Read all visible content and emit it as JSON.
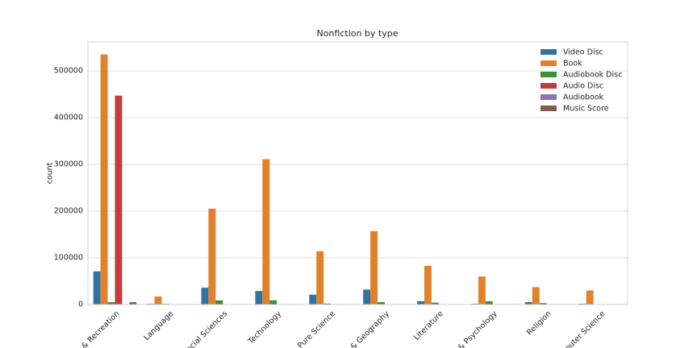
{
  "chart_data": {
    "type": "bar",
    "title": "Nonfiction by type",
    "y_label": "count",
    "categories": [
      "ts & Recreation",
      "Language",
      "Social Sciences",
      "Technology",
      "Pure Science",
      "y & Geography",
      "Literature",
      "y & Psychology",
      "Religion",
      "mputer Science"
    ],
    "series": [
      {
        "name": "Video Disc",
        "color": "#3274a1",
        "values": [
          71000,
          1500,
          36000,
          29000,
          21000,
          32000,
          7000,
          1500,
          5000,
          1500
        ]
      },
      {
        "name": "Book",
        "color": "#e1812c",
        "values": [
          535000,
          17000,
          205000,
          311000,
          114000,
          157000,
          83000,
          60000,
          37000,
          30000
        ]
      },
      {
        "name": "Audiobook Disc",
        "color": "#3a923a",
        "values": [
          5000,
          1500,
          9000,
          9000,
          2000,
          5000,
          4000,
          7000,
          3000,
          0
        ]
      },
      {
        "name": "Audio Disc",
        "color": "#c03d3e",
        "values": [
          447000,
          0,
          0,
          0,
          0,
          0,
          0,
          0,
          0,
          0
        ]
      },
      {
        "name": "Audiobook",
        "color": "#9372b2",
        "values": [
          0,
          0,
          0,
          0,
          0,
          0,
          0,
          0,
          0,
          0
        ]
      },
      {
        "name": "Music Score",
        "color": "#845b53",
        "values": [
          5000,
          0,
          0,
          0,
          0,
          0,
          0,
          0,
          0,
          0
        ]
      }
    ],
    "ylim": [
      0,
      562000
    ],
    "yticks": [
      0,
      100000,
      200000,
      300000,
      400000,
      500000
    ],
    "grid": true,
    "legend": "upper right"
  }
}
